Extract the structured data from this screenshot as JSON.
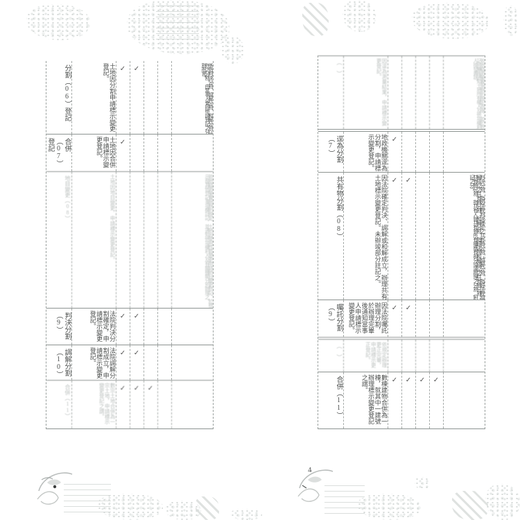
{
  "page": {
    "number_right": "4"
  },
  "left_table": {
    "rows": [
      {
        "style": "normal",
        "code": "分割（06）登記",
        "def": "土地因分割申請標示變更登記。",
        "checks": [
          "✓",
          "✓",
          "",
          ""
        ],
        "note": "係指判決分割、調解分割、和解分割以外之分割，由當事人會同申請登記之分割而言。"
      },
      {
        "style": "normal",
        "code": "合併（07）登記",
        "def": "土地因合併申請標示變更登記。",
        "checks": [
          "✓",
          "",
          "",
          ""
        ],
        "note": ""
      },
      {
        "style": "faint",
        "code": "地目變更（08）",
        "def": "土地因地目變更，申請標示變更登記。",
        "checks": [
          "",
          "",
          "",
          ""
        ],
        "note": "依地籍測量實施規則規定，土地因使用性質變更申請地目變更登記，於標示部其他登記事項欄註記，並通知他項權利人及有關機關分別辦理之。"
      },
      {
        "style": "normal",
        "code": "判決分割（9）",
        "def": "法院判決分割確定，申請標示變更登記。",
        "checks": [
          "✓",
          "✓",
          "",
          ""
        ],
        "note": ""
      },
      {
        "style": "normal",
        "code": "調解分割（10）",
        "def": "法院調解分割成立，申請標示變更登記。",
        "checks": [
          "✓",
          "✓",
          "",
          ""
        ],
        "note": ""
      },
      {
        "style": "faint",
        "code": "合併（11）",
        "def": "數宗土地合併為一宗土地，申請標示變更登記之謂。",
        "checks": [
          "✓",
          "✓",
          "✓",
          ""
        ],
        "note": ""
      }
    ]
  },
  "right_table": {
    "rows": [
      {
        "style": "faint",
        "code": "（　）",
        "def": "因逕為測量結果，申請標示變更登記。",
        "checks": [
          "",
          "",
          "",
          ""
        ],
        "note": "依地籍測量實施規則規定辦理，並於登記完畢後通知土地所有權人及他項權利人換發書狀。"
      },
      {
        "style": "normal",
        "code": "逕為分割（7）",
        "def": "地政機關逕為分割，申請標示變更登記。",
        "checks": [
          "✓",
          "",
          "",
          ""
        ],
        "note": ""
      },
      {
        "style": "normal",
        "code": "共有物分割（08）",
        "def": "因法院確定判決、調解或和解成立，辦理共有土地標示變更登記。未辦竣部分註記之。",
        "checks": [
          "✓",
          "✓",
          "",
          ""
        ],
        "note": "判決分割，指因法院判決確定之共有物分割；調解分割，指經法院調解成立之共有物分割；和解分割，指經法院和解成立之共有物分割；共有物分割，指共有人就共有物所有權應有部分協議辦理之分割（附記之分）。"
      },
      {
        "style": "normal",
        "code": "囑託分割（9）",
        "def": "因法院囑託辦理分割，於辦理完畢後通知當事人申請標示變更登記。",
        "checks": [
          "✓",
          "✓",
          "",
          ""
        ],
        "note": ""
      },
      {
        "style": "faint",
        "code": "（　）",
        "def": "依規定辦理更正完畢，申請標示更正登記。",
        "checks": [
          "",
          "",
          "",
          ""
        ],
        "note": ""
      },
      {
        "style": "normal",
        "code": "合併（11）",
        "def": "數棟建物合併為一棟，就其中一建號辦理標示變更登記之謂。",
        "checks": [
          "✓",
          "✓",
          "✓",
          "✓"
        ],
        "note": ""
      }
    ]
  }
}
